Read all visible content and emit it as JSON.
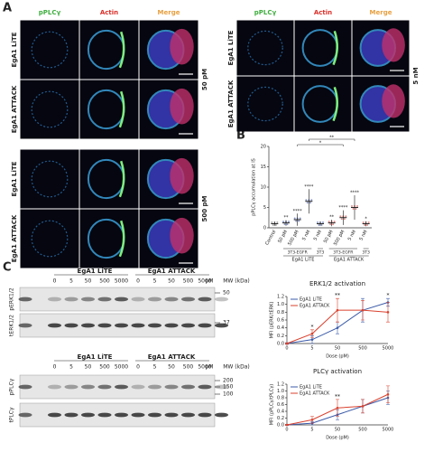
{
  "panel_a": {
    "letter": "A",
    "channels": [
      "pPLCγ",
      "Actin",
      "Merge"
    ],
    "rows": [
      "EgA1 LiTE",
      "EgA1 ATTACK"
    ],
    "blocks": [
      "50 pM",
      "500 pM",
      "5 nM"
    ]
  },
  "panel_b_letter": "B",
  "panel_c_letter": "C",
  "blots": {
    "groups": [
      "EgA1 LiTE",
      "EgA1 ATTACK"
    ],
    "doses": [
      "0",
      "5",
      "50",
      "500",
      "5000"
    ],
    "unit": "pM",
    "mw_title": "MW (kDa)",
    "top": {
      "rows": [
        "pERK1/2",
        "tERK1/2"
      ],
      "markers": [
        "50",
        "37"
      ]
    },
    "bottom": {
      "rows": [
        "pPLCγ",
        "tPLCγ"
      ],
      "markers": [
        "200",
        "150",
        "100"
      ]
    }
  },
  "chart_data": [
    {
      "type": "dot",
      "y_label": "pPLCγ accumulation at IS",
      "categories": [
        "Control",
        "50 pM",
        "500 pM",
        "5 nM",
        "5 nM",
        "50 pM",
        "500 pM",
        "5 nM",
        "5 nM"
      ],
      "subgroups": [
        "3T3-EGFR",
        "3T3",
        "3T3-EGFR",
        "3T3"
      ],
      "groups": [
        "EgA1 LiTE",
        "EgA1 ATTACK"
      ],
      "values": [
        1,
        1.2,
        2,
        6.5,
        1,
        1.2,
        2.5,
        5,
        1
      ],
      "errors": [
        0.5,
        0.7,
        1.5,
        3,
        0.5,
        0.8,
        1.8,
        3,
        0.6
      ],
      "colors": [
        "#555555",
        "#2a3f8f",
        "#2a3f8f",
        "#2a3f8f",
        "#2a3f8f",
        "#c0302a",
        "#c0302a",
        "#c0302a",
        "#c0302a"
      ],
      "significance": [
        null,
        "**",
        "****",
        "****",
        null,
        "**",
        "****",
        "****",
        "*"
      ],
      "brackets": [
        {
          "from": 3,
          "to": 7,
          "label": "**"
        },
        {
          "from": 2,
          "to": 6,
          "label": "*"
        }
      ],
      "ylim": [
        0,
        20
      ],
      "yticks": [
        0,
        5,
        10,
        15,
        20
      ]
    },
    {
      "type": "line",
      "title": "ERK1/2 activation",
      "x_label": "Dose (pM)",
      "y_label": "MFI (pERK/tERK)",
      "categories": [
        "0",
        "5",
        "50",
        "500",
        "5000"
      ],
      "series": [
        {
          "name": "EgA1 LiTE",
          "color": "#3b5ba9",
          "values": [
            0,
            0.1,
            0.4,
            0.85,
            1.05
          ],
          "errors": [
            0.02,
            0.1,
            0.15,
            0.3,
            0.1
          ]
        },
        {
          "name": "EgA1 ATTACK",
          "color": "#d9412e",
          "values": [
            0,
            0.25,
            0.85,
            0.85,
            0.8
          ],
          "errors": [
            0.02,
            0.1,
            0.3,
            0.25,
            0.25
          ]
        }
      ],
      "significance": [
        null,
        "*",
        "**",
        null,
        "*"
      ],
      "ylim": [
        0,
        1.2
      ],
      "yticks": [
        {
          "value": 0,
          "label": "0.0"
        },
        0.2,
        0.4,
        0.6,
        0.8,
        {
          "value": 1,
          "label": "1.0"
        },
        1.2
      ]
    },
    {
      "type": "line",
      "title": "PLCγ activation",
      "x_label": "Dose (pM)",
      "y_label": "MFI (pPLCγ/tPLCγ)",
      "categories": [
        "0",
        "5",
        "50",
        "500",
        "5000"
      ],
      "series": [
        {
          "name": "EgA1 LiTE",
          "color": "#3b5ba9",
          "values": [
            0,
            0.05,
            0.3,
            0.55,
            0.8
          ],
          "errors": [
            0.02,
            0.05,
            0.15,
            0.2,
            0.2
          ]
        },
        {
          "name": "EgA1 ATTACK",
          "color": "#d9412e",
          "values": [
            0,
            0.15,
            0.5,
            0.55,
            0.9
          ],
          "errors": [
            0.02,
            0.1,
            0.25,
            0.2,
            0.25
          ]
        }
      ],
      "significance": [
        null,
        null,
        "**",
        null,
        null
      ],
      "ylim": [
        0,
        1.2
      ],
      "yticks": [
        {
          "value": 0,
          "label": "0.0"
        },
        0.2,
        0.4,
        0.6,
        0.8,
        {
          "value": 1,
          "label": "1.0"
        },
        1.2
      ]
    }
  ]
}
